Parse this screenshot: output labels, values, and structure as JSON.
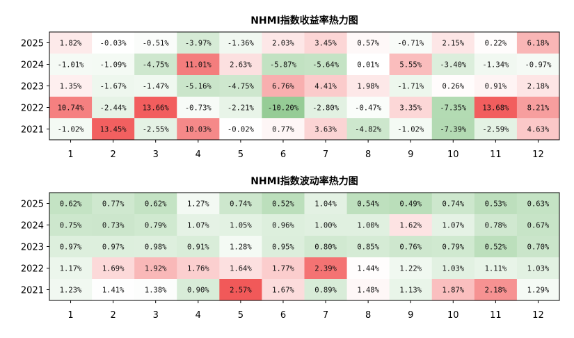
{
  "chart_data": [
    {
      "type": "heatmap",
      "title": "NHMI指数收益率热力图",
      "xlabel": "",
      "ylabel": "",
      "x_categories": [
        "1",
        "2",
        "3",
        "4",
        "5",
        "6",
        "7",
        "8",
        "9",
        "10",
        "11",
        "12"
      ],
      "y_categories": [
        "2025",
        "2024",
        "2023",
        "2022",
        "2021"
      ],
      "values": [
        [
          1.82,
          -0.03,
          -0.51,
          -3.97,
          -1.36,
          2.03,
          3.45,
          0.57,
          -0.71,
          2.15,
          0.22,
          6.18
        ],
        [
          -1.01,
          -1.09,
          -4.75,
          11.01,
          2.63,
          -5.87,
          -5.64,
          0.01,
          5.55,
          -3.4,
          -1.34,
          -0.97
        ],
        [
          1.35,
          -1.67,
          -1.47,
          -5.16,
          -4.75,
          6.76,
          4.41,
          1.98,
          -1.71,
          0.26,
          0.91,
          2.18
        ],
        [
          10.74,
          -2.44,
          13.66,
          -0.73,
          -2.21,
          -10.2,
          -2.8,
          -0.47,
          3.35,
          -7.35,
          13.68,
          8.21
        ],
        [
          -1.02,
          13.45,
          -2.55,
          10.03,
          -0.02,
          0.77,
          3.63,
          -4.82,
          -1.02,
          -7.39,
          -2.59,
          4.63
        ]
      ],
      "value_format": "percent_2dp",
      "colormap": {
        "negative": "#4aa84a",
        "mid": "#ffffff",
        "positive": "#ee3030"
      },
      "grid": false,
      "legend": "none"
    },
    {
      "type": "heatmap",
      "title": "NHMI指数波动率热力图",
      "xlabel": "",
      "ylabel": "",
      "x_categories": [
        "1",
        "2",
        "3",
        "4",
        "5",
        "6",
        "7",
        "8",
        "9",
        "10",
        "11",
        "12"
      ],
      "y_categories": [
        "2025",
        "2024",
        "2023",
        "2022",
        "2021"
      ],
      "values": [
        [
          0.62,
          0.77,
          0.62,
          1.27,
          0.74,
          0.52,
          1.04,
          0.54,
          0.49,
          0.74,
          0.53,
          0.63
        ],
        [
          0.75,
          0.73,
          0.79,
          1.07,
          1.05,
          0.96,
          1.0,
          1.0,
          1.62,
          1.07,
          0.78,
          0.67
        ],
        [
          0.97,
          0.97,
          0.98,
          0.91,
          1.28,
          0.95,
          0.8,
          0.85,
          0.76,
          0.79,
          0.52,
          0.7
        ],
        [
          1.17,
          1.69,
          1.92,
          1.76,
          1.64,
          1.77,
          2.39,
          1.44,
          1.22,
          1.03,
          1.11,
          1.03
        ],
        [
          1.23,
          1.41,
          1.38,
          0.9,
          2.57,
          1.67,
          0.89,
          1.48,
          1.13,
          1.87,
          2.18,
          1.29
        ]
      ],
      "value_format": "percent_2dp",
      "colormap": {
        "low": "#4aa84a",
        "mid": "#ffffff",
        "high": "#ee3030"
      },
      "grid": false,
      "legend": "none"
    }
  ]
}
